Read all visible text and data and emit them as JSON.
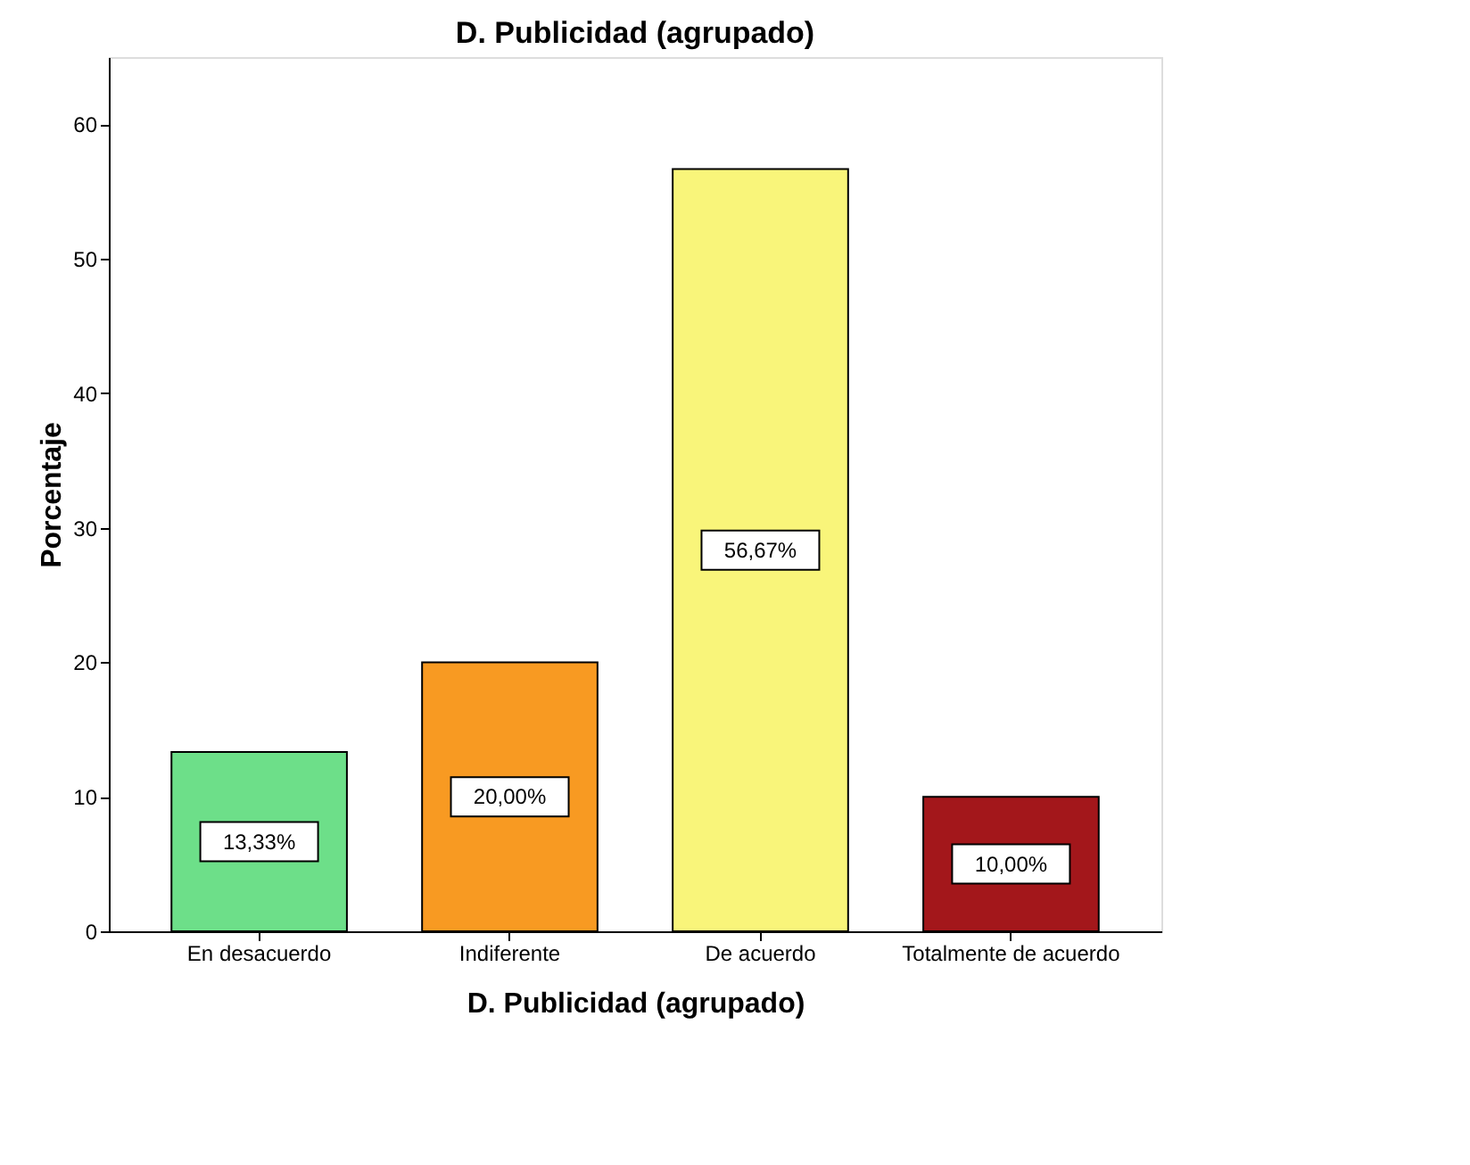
{
  "chart_data": {
    "type": "bar",
    "title": "D. Publicidad (agrupado)",
    "xlabel": "D. Publicidad (agrupado)",
    "ylabel": "Porcentaje",
    "categories": [
      "En desacuerdo",
      "Indiferente",
      "De acuerdo",
      "Totalmente de acuerdo"
    ],
    "values": [
      13.33,
      20.0,
      56.67,
      10.0
    ],
    "colors": [
      "#6ddf89",
      "#f89a22",
      "#f9f57a",
      "#a3171b"
    ],
    "value_labels": [
      "13,33%",
      "20,00%",
      "56,67%",
      "10,00%"
    ],
    "ylim": [
      0,
      65
    ],
    "yticks": [
      0,
      10,
      20,
      30,
      40,
      50,
      60
    ],
    "grid": false
  }
}
